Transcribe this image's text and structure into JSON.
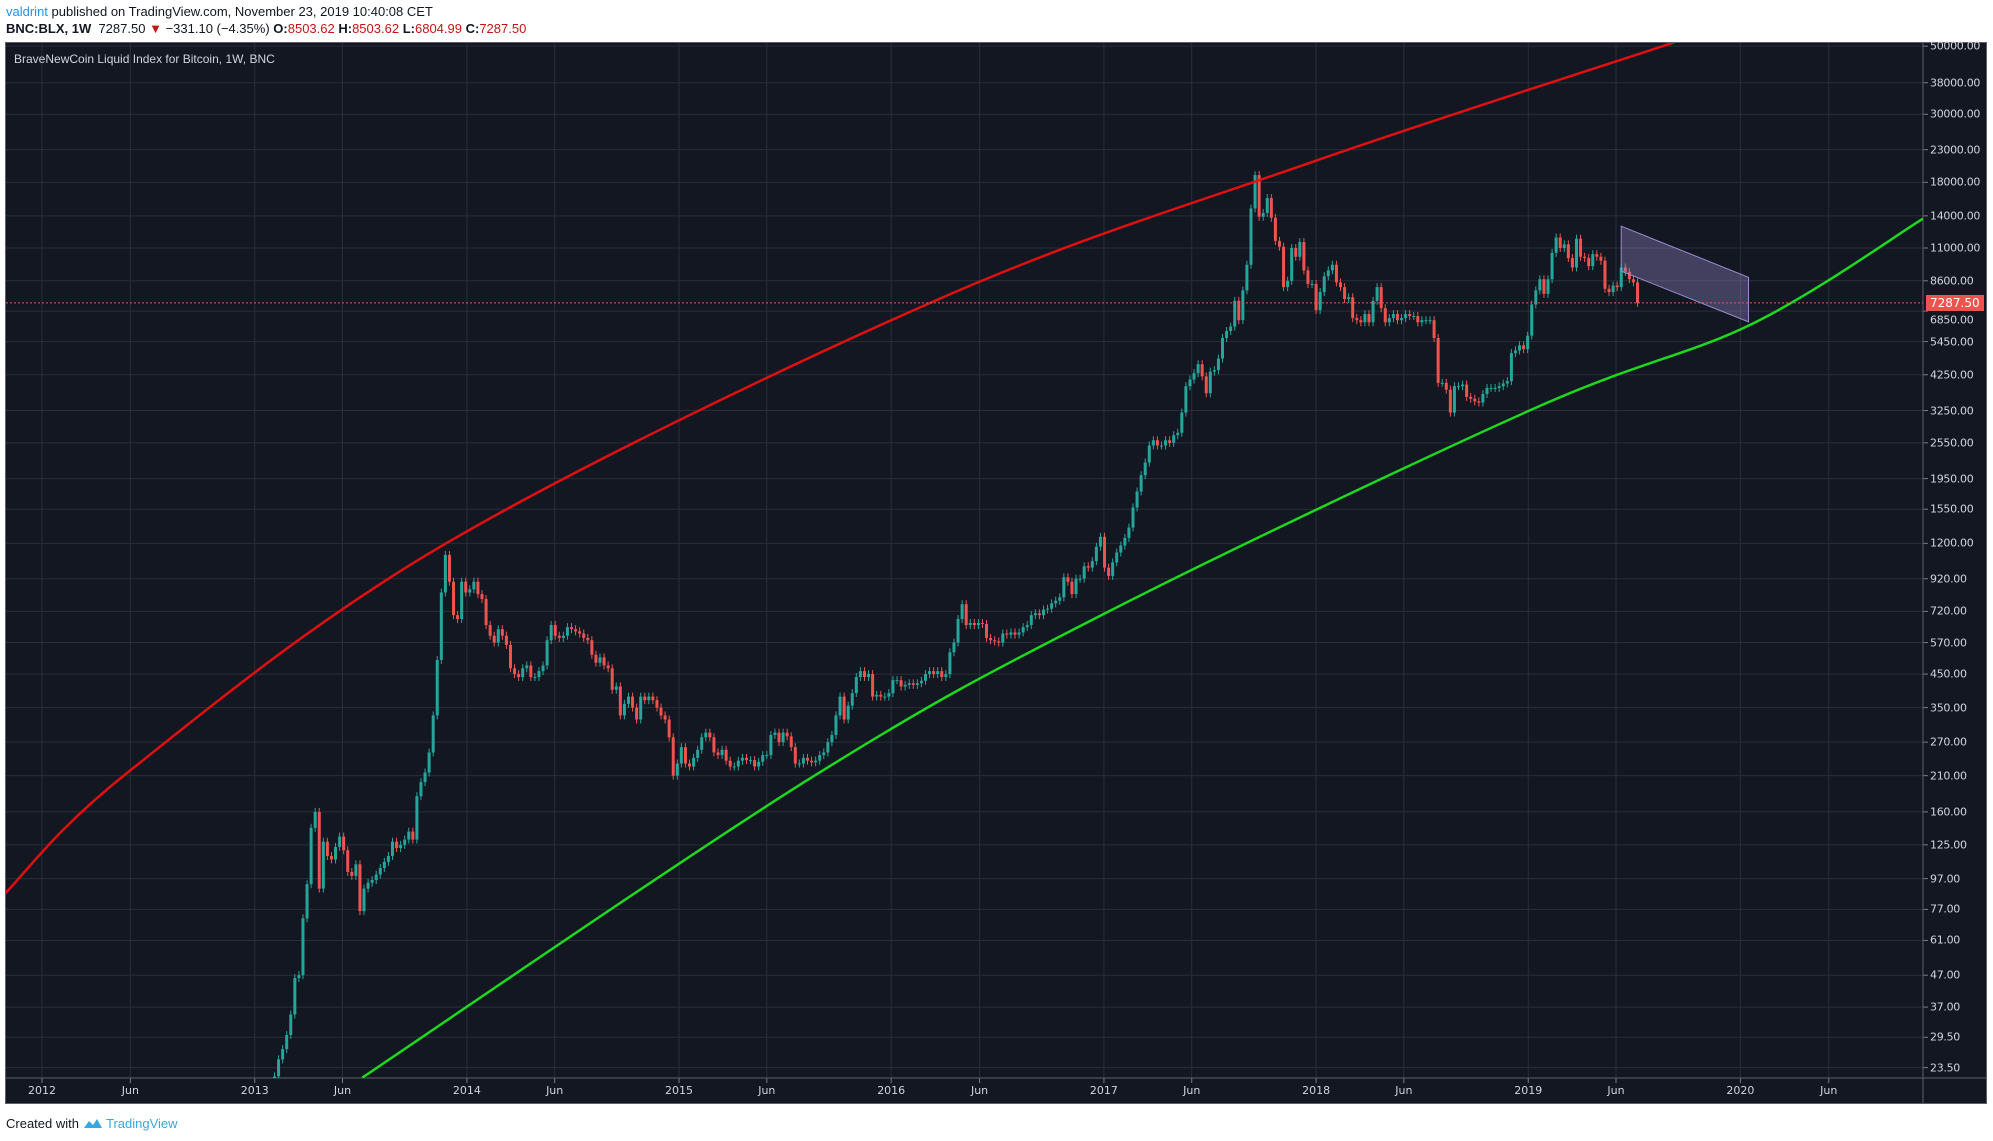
{
  "header": {
    "author": "valdrint",
    "published": "published on TradingView.com, November 23, 2019 10:40:08 CET",
    "symbol": "BNC:BLX, 1W",
    "last": "7287.50",
    "change": "−331.10 (−4.35%)",
    "o_label": "O:",
    "o": "8503.62",
    "h_label": "H:",
    "h": "8503.62",
    "l_label": "L:",
    "l": "6804.99",
    "c_label": "C:",
    "c": "7287.50",
    "direction_icon": "triangle-down-icon"
  },
  "legend": "BraveNewCoin Liquid Index for Bitcoin, 1W, BNC",
  "footer": {
    "created_with": "Created with",
    "brand": "TradingView",
    "logo_icon": "tradingview-logo-icon"
  },
  "colors": {
    "background": "#131722",
    "grid": "#2a2e39",
    "up": "#26a69a",
    "down": "#ef5350",
    "resistance": "#e01010",
    "support": "#1ed81e",
    "channel": "#9c8ccf",
    "last_price": "#ef5350"
  },
  "chart_data": {
    "type": "candlestick",
    "title": "BraveNewCoin Liquid Index for Bitcoin, 1W, BNC",
    "y_scale": "log",
    "ylim": [
      23.5,
      50000
    ],
    "xlim": [
      "2011-11-20",
      "2020-12-10"
    ],
    "grid": true,
    "y_ticks": [
      "50000.00",
      "38000.00",
      "30000.00",
      "23000.00",
      "18000.00",
      "14000.00",
      "11000.00",
      "8600.00",
      "6850.00",
      "5450.00",
      "4250.00",
      "3250.00",
      "2550.00",
      "1950.00",
      "1550.00",
      "1200.00",
      "920.00",
      "720.00",
      "570.00",
      "450.00",
      "350.00",
      "270.00",
      "210.00",
      "160.00",
      "125.00",
      "97.00",
      "77.00",
      "61.00",
      "47.00",
      "37.00",
      "29.50",
      "23.50"
    ],
    "x_ticks": [
      {
        "label": "2012",
        "date": "2012-01-01"
      },
      {
        "label": "Jun",
        "date": "2012-06-01"
      },
      {
        "label": "2013",
        "date": "2013-01-01"
      },
      {
        "label": "Jun",
        "date": "2013-06-01"
      },
      {
        "label": "2014",
        "date": "2014-01-01"
      },
      {
        "label": "Jun",
        "date": "2014-06-01"
      },
      {
        "label": "2015",
        "date": "2015-01-01"
      },
      {
        "label": "Jun",
        "date": "2015-06-01"
      },
      {
        "label": "2016",
        "date": "2016-01-01"
      },
      {
        "label": "Jun",
        "date": "2016-06-01"
      },
      {
        "label": "2017",
        "date": "2017-01-01"
      },
      {
        "label": "Jun",
        "date": "2017-06-01"
      },
      {
        "label": "2018",
        "date": "2018-01-01"
      },
      {
        "label": "Jun",
        "date": "2018-06-01"
      },
      {
        "label": "2019",
        "date": "2019-01-01"
      },
      {
        "label": "Jun",
        "date": "2019-06-01"
      },
      {
        "label": "2020",
        "date": "2020-01-01"
      },
      {
        "label": "Jun",
        "date": "2020-06-01"
      }
    ],
    "last_price": "7287.50",
    "series_start": "2013-02-04",
    "interval": "1W",
    "closes": [
      22,
      25,
      27,
      30,
      35,
      46,
      47,
      72,
      93,
      142,
      160,
      90,
      128,
      115,
      112,
      123,
      133,
      120,
      102,
      99,
      108,
      76,
      90,
      94,
      96,
      100,
      105,
      110,
      115,
      128,
      122,
      125,
      130,
      138,
      130,
      180,
      200,
      215,
      250,
      330,
      500,
      830,
      1100,
      900,
      700,
      680,
      900,
      830,
      850,
      900,
      820,
      790,
      650,
      600,
      570,
      630,
      600,
      560,
      470,
      450,
      440,
      470,
      480,
      440,
      440,
      460,
      480,
      580,
      650,
      600,
      590,
      600,
      640,
      630,
      620,
      610,
      590,
      580,
      520,
      490,
      510,
      480,
      470,
      400,
      410,
      330,
      360,
      380,
      350,
      320,
      380,
      370,
      380,
      370,
      350,
      330,
      320,
      280,
      210,
      230,
      260,
      230,
      225,
      240,
      255,
      280,
      290,
      280,
      250,
      245,
      255,
      235,
      225,
      225,
      235,
      240,
      236,
      236,
      225,
      233,
      245,
      245,
      285,
      290,
      270,
      290,
      282,
      260,
      230,
      230,
      240,
      235,
      232,
      235,
      245,
      250,
      270,
      285,
      330,
      380,
      320,
      355,
      390,
      440,
      460,
      440,
      450,
      380,
      385,
      380,
      380,
      390,
      430,
      430,
      410,
      415,
      420,
      415,
      420,
      428,
      450,
      460,
      450,
      460,
      440,
      450,
      530,
      570,
      680,
      760,
      650,
      660,
      650,
      660,
      655,
      590,
      580,
      575,
      570,
      610,
      605,
      615,
      605,
      615,
      640,
      650,
      700,
      710,
      700,
      730,
      735,
      765,
      780,
      800,
      930,
      900,
      820,
      920,
      920,
      1010,
      1000,
      1050,
      1170,
      1260,
      1000,
      940,
      1040,
      1120,
      1180,
      1250,
      1350,
      1570,
      1770,
      2000,
      2200,
      2500,
      2600,
      2500,
      2500,
      2600,
      2550,
      2700,
      2750,
      3200,
      3900,
      4100,
      4300,
      4600,
      4200,
      3700,
      4350,
      4400,
      4800,
      5600,
      5900,
      6100,
      7400,
      6400,
      8000,
      9700,
      14800,
      19000,
      13900,
      14300,
      16000,
      13800,
      11600,
      11100,
      8200,
      8600,
      11000,
      10300,
      11500,
      9300,
      8400,
      8400,
      6900,
      7900,
      8900,
      9300,
      9700,
      8500,
      8200,
      7500,
      7600,
      6500,
      6400,
      6300,
      6700,
      6300,
      7400,
      8200,
      7000,
      6300,
      6500,
      6700,
      6400,
      6500,
      6700,
      6600,
      6600,
      6300,
      6400,
      6400,
      6400,
      5600,
      4000,
      4000,
      3800,
      3200,
      3900,
      3900,
      3950,
      3600,
      3550,
      3480,
      3450,
      3680,
      3850,
      3850,
      3850,
      3900,
      3980,
      4050,
      5000,
      5100,
      5300,
      5150,
      5700,
      7200,
      8000,
      8700,
      7800,
      8700,
      10600,
      11900,
      11000,
      11300,
      10200,
      9500,
      11800,
      10300,
      10200,
      9600,
      10500,
      10300,
      10000,
      8100,
      7900,
      8300,
      8200,
      9500,
      9200,
      8700,
      8500,
      7287.5
    ],
    "annotations": {
      "resistance_curve": [
        [
          "2011-10-30",
          87
        ],
        [
          "2012-05-26",
          214
        ],
        [
          "2013-11-24",
          1193
        ],
        [
          "2016-03-14",
          7370
        ],
        [
          "2017-12-20",
          20800
        ],
        [
          "2019-09-10",
          51500
        ]
      ],
      "support_curve": [
        [
          "2013-07-05",
          21.8
        ],
        [
          "2015-08-15",
          206
        ],
        [
          "2017-01-01",
          707
        ],
        [
          "2019-01-08",
          3280
        ],
        [
          "2020-01-20",
          6210
        ],
        [
          "2020-11-10",
          13700
        ]
      ],
      "channel": {
        "top": [
          [
            "2019-06-10",
            12950
          ],
          [
            "2020-01-15",
            8830
          ]
        ],
        "bottom": [
          [
            "2019-06-10",
            9250
          ],
          [
            "2020-01-15",
            6320
          ]
        ]
      }
    }
  }
}
